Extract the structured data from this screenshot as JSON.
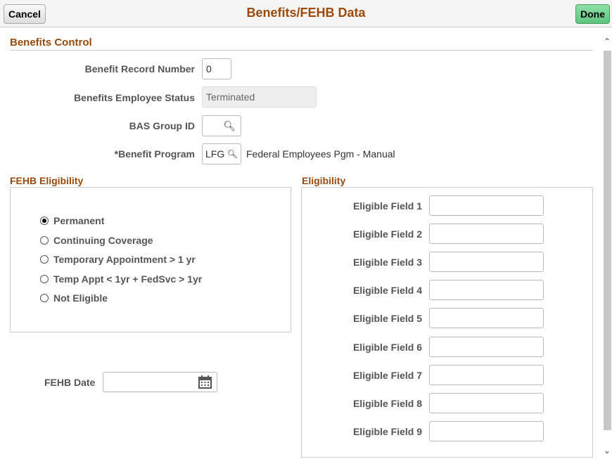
{
  "header": {
    "title": "Benefits/FEHB Data",
    "cancel": "Cancel",
    "done": "Done"
  },
  "control": {
    "title": "Benefits Control",
    "record_label": "Benefit Record Number",
    "record_value": "0",
    "status_label": "Benefits Employee Status",
    "status_value": "Terminated",
    "bas_label": "BAS Group ID",
    "bas_value": "",
    "program_label": "*Benefit Program",
    "program_value": "LFG",
    "program_desc": "Federal Employees Pgm - Manual"
  },
  "fehb": {
    "title": "FEHB Eligibility",
    "options": [
      "Permanent",
      "Continuing Coverage",
      "Temporary Appointment > 1 yr",
      "Temp Appt < 1yr + FedSvc > 1yr",
      "Not Eligible"
    ],
    "selected": "Permanent",
    "date_label": "FEHB Date",
    "date_value": ""
  },
  "eligibility": {
    "title": "Eligibility",
    "fields": [
      "Eligible Field 1",
      "Eligible Field 2",
      "Eligible Field 3",
      "Eligible Field 4",
      "Eligible Field 5",
      "Eligible Field 6",
      "Eligible Field 7",
      "Eligible Field 8",
      "Eligible Field 9"
    ]
  }
}
